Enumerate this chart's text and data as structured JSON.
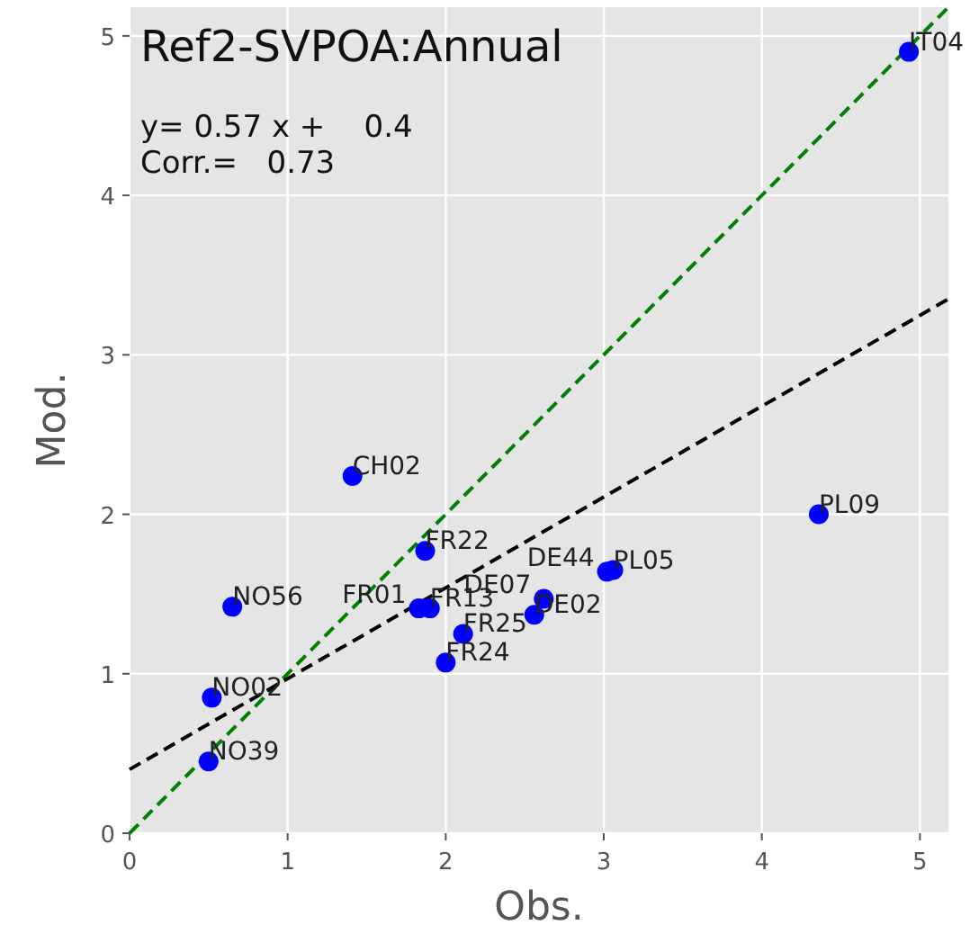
{
  "chart_data": {
    "type": "scatter",
    "title": "Ref2-SVPOA:Annual",
    "xlabel": "Obs.",
    "ylabel": "Mod.",
    "annotations": [
      "y= 0.57 x +    0.4",
      "Corr.=   0.73",
      {
        "text": "IT04",
        "x": 4.93,
        "y": 4.9
      },
      {
        "text": "PL09",
        "x": 4.36,
        "y": 2.0
      },
      {
        "text": "CH02",
        "x": 1.41,
        "y": 2.24
      },
      {
        "text": "FR22",
        "x": 1.87,
        "y": 1.77
      },
      {
        "text": "NO56",
        "x": 0.65,
        "y": 1.42
      },
      {
        "text": "FR01",
        "x": 1.83,
        "y": 1.41
      },
      {
        "text": "FR13",
        "x": 1.9,
        "y": 1.41
      },
      {
        "text": "FR25",
        "x": 2.11,
        "y": 1.25
      },
      {
        "text": "FR24",
        "x": 2.0,
        "y": 1.07
      },
      {
        "text": "DE07",
        "x": 2.62,
        "y": 1.47
      },
      {
        "text": "DE02",
        "x": 2.56,
        "y": 1.37
      },
      {
        "text": "DE44",
        "x": 3.02,
        "y": 1.64
      },
      {
        "text": "PL05",
        "x": 3.06,
        "y": 1.65
      },
      {
        "text": "NO02",
        "x": 0.52,
        "y": 0.85
      },
      {
        "text": "NO39",
        "x": 0.5,
        "y": 0.45
      }
    ],
    "series": [
      {
        "type": "line",
        "color": "#008000",
        "line_style": "dashed",
        "marker": "none",
        "x": [
          0,
          5.18
        ],
        "values": [
          0,
          5.18
        ]
      },
      {
        "type": "line",
        "color": "#000000",
        "line_style": "dashed",
        "marker": "none",
        "x": [
          0,
          5.18
        ],
        "values": [
          0.4,
          3.35
        ]
      },
      {
        "color": "#0000ff",
        "marker": "circle",
        "x": [
          4.93,
          4.36,
          1.41,
          1.87,
          0.65,
          1.83,
          1.9,
          2.11,
          2.0,
          2.62,
          2.56,
          3.02,
          3.06,
          0.52,
          0.5
        ],
        "values": [
          4.9,
          2.0,
          2.24,
          1.77,
          1.42,
          1.41,
          1.41,
          1.25,
          1.07,
          1.47,
          1.37,
          1.64,
          1.65,
          0.85,
          0.45
        ]
      }
    ],
    "xlim": [
      0,
      5.18
    ],
    "ylim": [
      0,
      5.18
    ],
    "xticks": [
      0,
      1,
      2,
      3,
      4,
      5
    ],
    "yticks": [
      0,
      1,
      2,
      3,
      4,
      5
    ],
    "grid": true
  }
}
